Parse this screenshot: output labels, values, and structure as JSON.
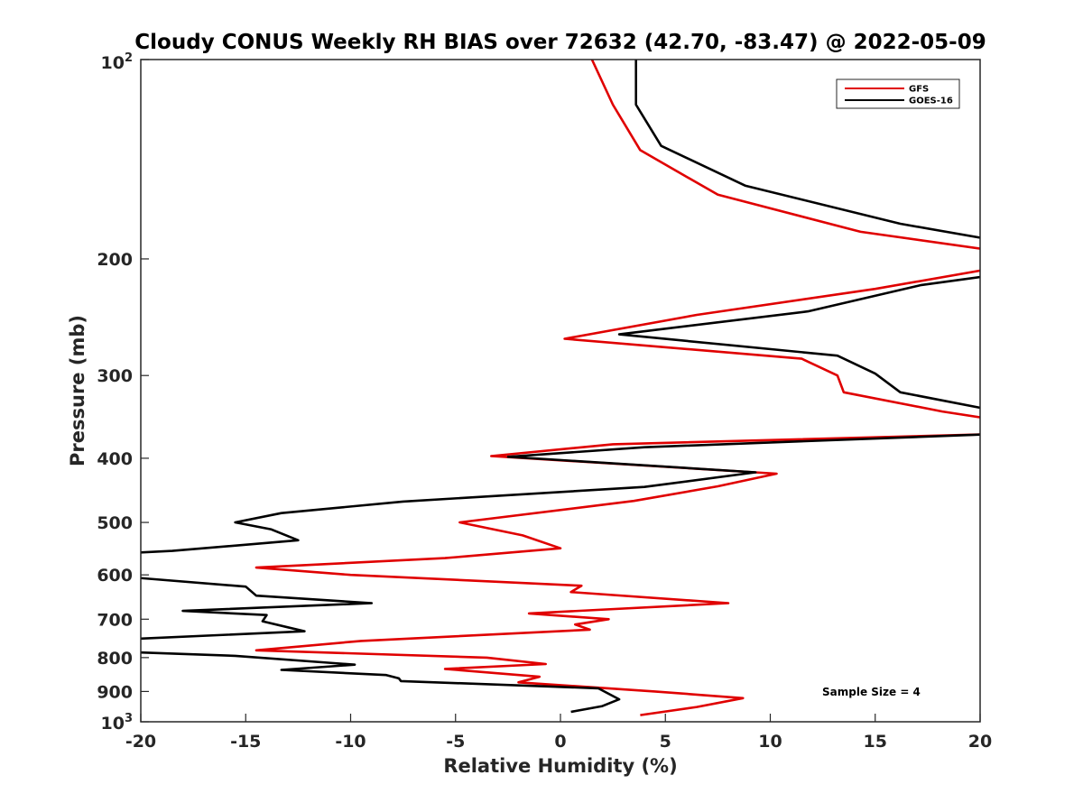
{
  "chart_data": {
    "type": "line",
    "title": "Cloudy CONUS Weekly RH BIAS over 72632 (42.70, -83.47) @ 2022-05-09",
    "xlabel": "Relative Humidity (%)",
    "ylabel": "Pressure (mb)",
    "xlim": [
      -20,
      20
    ],
    "ylim": [
      100,
      1000
    ],
    "y_scale": "log",
    "y_reversed": true,
    "grid": false,
    "legend_position": "top-right",
    "x_ticks": [
      "-20",
      "-15",
      "-10",
      "-5",
      "0",
      "5",
      "10",
      "15",
      "20"
    ],
    "x_tick_values": [
      -20,
      -15,
      -10,
      -5,
      0,
      5,
      10,
      15,
      20
    ],
    "y_ticks": [
      {
        "value": 100,
        "base": "10",
        "exp": "2"
      },
      {
        "value": 200,
        "label": "200"
      },
      {
        "value": 300,
        "label": "300"
      },
      {
        "value": 400,
        "label": "400"
      },
      {
        "value": 500,
        "label": "500"
      },
      {
        "value": 600,
        "label": "600"
      },
      {
        "value": 700,
        "label": "700"
      },
      {
        "value": 800,
        "label": "800"
      },
      {
        "value": 900,
        "label": "900"
      },
      {
        "value": 1000,
        "base": "10",
        "exp": "3"
      }
    ],
    "annotation": "Sample Size = 4",
    "series": [
      {
        "name": "GFS",
        "color": "#e00000",
        "points": [
          [
            1.5,
            100
          ],
          [
            2.5,
            117
          ],
          [
            3.8,
            137
          ],
          [
            7.5,
            160
          ],
          [
            14.3,
            182
          ],
          [
            20.5,
            194
          ],
          [
            20.5,
            207
          ],
          [
            15.0,
            222
          ],
          [
            6.5,
            243
          ],
          [
            0.2,
            264
          ],
          [
            11.5,
            283
          ],
          [
            13.2,
            300
          ],
          [
            13.5,
            318
          ],
          [
            18.2,
            340
          ],
          [
            20.5,
            349
          ],
          [
            20.5,
            368
          ],
          [
            2.5,
            381
          ],
          [
            -3.3,
            397
          ],
          [
            10.3,
            422
          ],
          [
            7.5,
            441
          ],
          [
            3.5,
            464
          ],
          [
            -4.8,
            500
          ],
          [
            -1.8,
            523
          ],
          [
            0,
            547
          ],
          [
            -5.5,
            566
          ],
          [
            -14.5,
            585
          ],
          [
            -10.0,
            600
          ],
          [
            1.0,
            623
          ],
          [
            0.5,
            637
          ],
          [
            8.0,
            662
          ],
          [
            -1.5,
            686
          ],
          [
            2.3,
            700
          ],
          [
            0.7,
            713
          ],
          [
            1.4,
            726
          ],
          [
            -9.5,
            755
          ],
          [
            -14.5,
            780
          ],
          [
            -3.5,
            800
          ],
          [
            -0.7,
            818
          ],
          [
            -5.5,
            832
          ],
          [
            -1.0,
            855
          ],
          [
            -2.0,
            872
          ],
          [
            4.5,
            900
          ],
          [
            8.7,
            921
          ],
          [
            6.5,
            950
          ],
          [
            3.8,
            977
          ]
        ]
      },
      {
        "name": "GOES-16",
        "color": "#000000",
        "points": [
          [
            3.6,
            100
          ],
          [
            3.6,
            117
          ],
          [
            4.8,
            135
          ],
          [
            8.8,
            155
          ],
          [
            16.2,
            177
          ],
          [
            20.5,
            187
          ],
          [
            20.5,
            212
          ],
          [
            17.2,
            219
          ],
          [
            11.8,
            240
          ],
          [
            2.8,
            260
          ],
          [
            13.2,
            280
          ],
          [
            15.0,
            298
          ],
          [
            16.2,
            318
          ],
          [
            20.5,
            338
          ],
          [
            20.5,
            368
          ],
          [
            4.0,
            385
          ],
          [
            -2.5,
            398
          ],
          [
            9.3,
            420
          ],
          [
            4.0,
            442
          ],
          [
            -7.5,
            465
          ],
          [
            -13.3,
            484
          ],
          [
            -15.5,
            500
          ],
          [
            -13.8,
            512
          ],
          [
            -12.5,
            532
          ],
          [
            -18.5,
            552
          ],
          [
            -20.5,
            556
          ],
          [
            -20.5,
            605
          ],
          [
            -15.0,
            625
          ],
          [
            -14.5,
            645
          ],
          [
            -9.0,
            662
          ],
          [
            -18.0,
            680
          ],
          [
            -14.0,
            690
          ],
          [
            -14.2,
            705
          ],
          [
            -12.2,
            730
          ],
          [
            -20.5,
            750
          ],
          [
            -20.5,
            785
          ],
          [
            -15.5,
            795
          ],
          [
            -9.8,
            820
          ],
          [
            -13.3,
            835
          ],
          [
            -8.3,
            850
          ],
          [
            -7.7,
            860
          ],
          [
            -7.6,
            868
          ],
          [
            1.8,
            890
          ],
          [
            2.8,
            925
          ],
          [
            2.0,
            947
          ],
          [
            0.5,
            966
          ]
        ]
      }
    ]
  }
}
